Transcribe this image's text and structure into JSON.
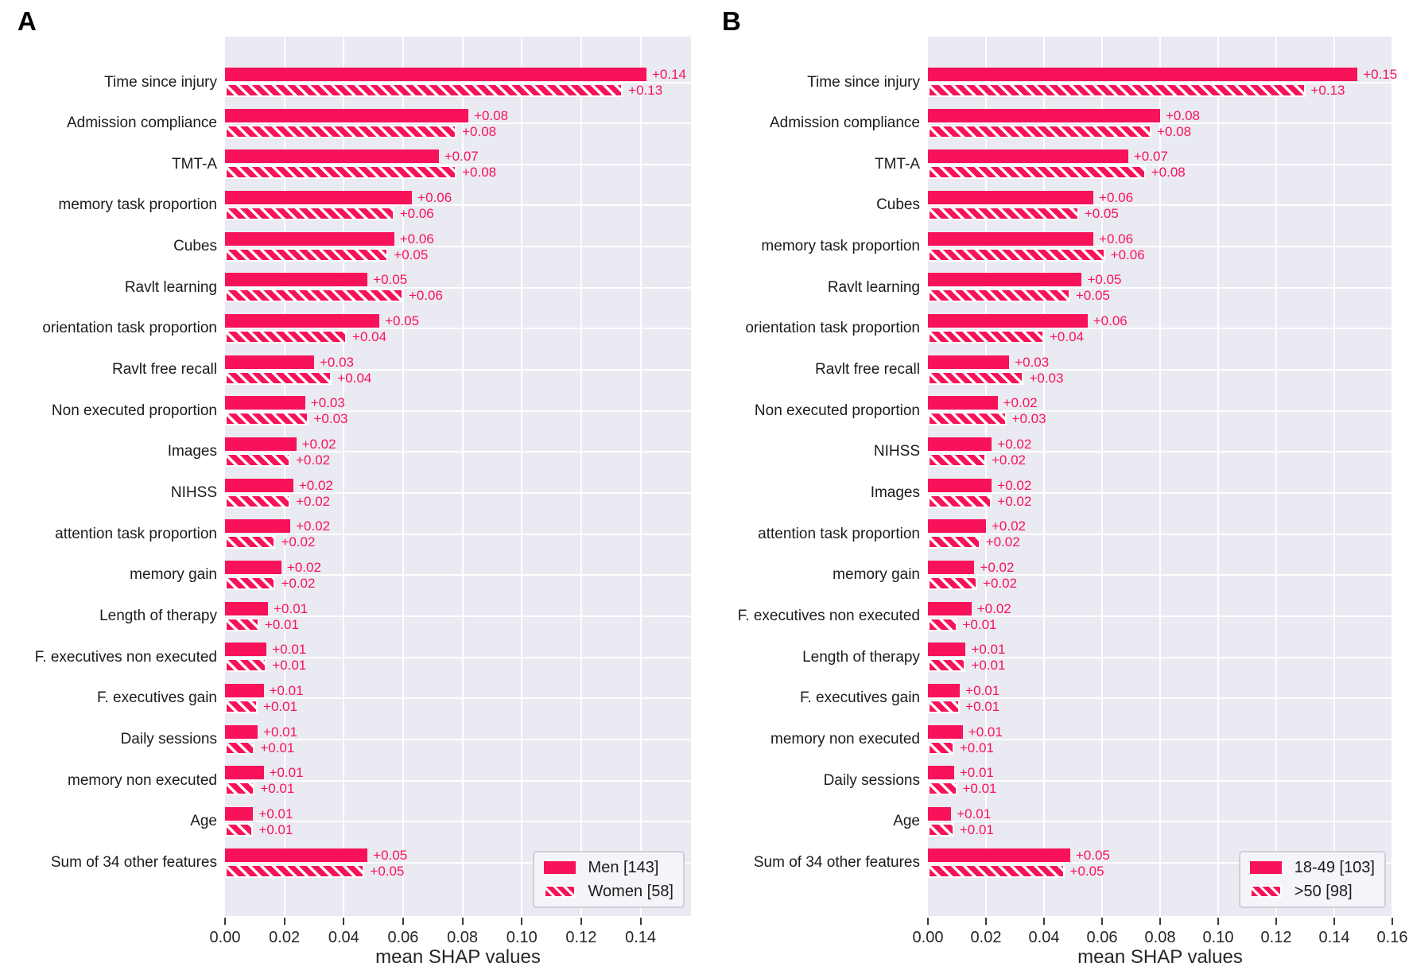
{
  "colors": {
    "bar": "#f8125a",
    "plot_bg": "#eaeaf2",
    "grid": "#ffffff",
    "text": "#262626",
    "legend_bg": "#f4f4f9",
    "legend_border": "#cfcfd8"
  },
  "chart_data": [
    {
      "type": "bar",
      "orientation": "horizontal",
      "panel": "A",
      "title": "",
      "xlabel": "mean SHAP values",
      "ylabel": "",
      "xlim": [
        0,
        0.157
      ],
      "xticks": [
        0,
        0.02,
        0.04,
        0.06,
        0.08,
        0.1,
        0.12,
        0.14
      ],
      "xtick_labels": [
        "0.00",
        "0.02",
        "0.04",
        "0.06",
        "0.08",
        "0.10",
        "0.12",
        "0.14"
      ],
      "grid": true,
      "legend_position": "lower right",
      "categories": [
        "Time since injury",
        "Admission compliance",
        "TMT-A",
        "memory task proportion",
        "Cubes",
        "Ravlt learning",
        "orientation task proportion",
        "Ravlt free recall",
        "Non executed proportion",
        "Images",
        "NIHSS",
        "attention task proportion",
        "memory gain",
        "Length of therapy",
        "F. executives non executed",
        "F. executives gain",
        "Daily sessions",
        "memory non executed",
        "Age",
        "Sum of 34 other features"
      ],
      "series": [
        {
          "name": "Men [143]",
          "style": "solid",
          "values": [
            0.142,
            0.082,
            0.072,
            0.063,
            0.057,
            0.048,
            0.052,
            0.03,
            0.027,
            0.024,
            0.023,
            0.022,
            0.019,
            0.0145,
            0.014,
            0.013,
            0.011,
            0.013,
            0.0095,
            0.048
          ],
          "value_labels": [
            "+0.14",
            "+0.08",
            "+0.07",
            "+0.06",
            "+0.06",
            "+0.05",
            "+0.05",
            "+0.03",
            "+0.03",
            "+0.02",
            "+0.02",
            "+0.02",
            "+0.02",
            "+0.01",
            "+0.01",
            "+0.01",
            "+0.01",
            "+0.01",
            "+0.01",
            "+0.05"
          ]
        },
        {
          "name": "Women [58]",
          "style": "hatched",
          "values": [
            0.134,
            0.078,
            0.078,
            0.057,
            0.055,
            0.06,
            0.041,
            0.036,
            0.028,
            0.022,
            0.022,
            0.017,
            0.017,
            0.0115,
            0.014,
            0.011,
            0.01,
            0.01,
            0.0095,
            0.047
          ],
          "value_labels": [
            "+0.13",
            "+0.08",
            "+0.08",
            "+0.06",
            "+0.05",
            "+0.06",
            "+0.04",
            "+0.04",
            "+0.03",
            "+0.02",
            "+0.02",
            "+0.02",
            "+0.02",
            "+0.01",
            "+0.01",
            "+0.01",
            "+0.01",
            "+0.01",
            "+0.01",
            "+0.05"
          ]
        }
      ]
    },
    {
      "type": "bar",
      "orientation": "horizontal",
      "panel": "B",
      "title": "",
      "xlabel": "mean SHAP values",
      "ylabel": "",
      "xlim": [
        0,
        0.16
      ],
      "xticks": [
        0,
        0.02,
        0.04,
        0.06,
        0.08,
        0.1,
        0.12,
        0.14,
        0.16
      ],
      "xtick_labels": [
        "0.00",
        "0.02",
        "0.04",
        "0.06",
        "0.08",
        "0.10",
        "0.12",
        "0.14",
        "0.16"
      ],
      "grid": true,
      "legend_position": "lower right",
      "categories": [
        "Time since injury",
        "Admission compliance",
        "TMT-A",
        "Cubes",
        "memory task proportion",
        "Ravlt learning",
        "orientation task proportion",
        "Ravlt free recall",
        "Non executed proportion",
        "NIHSS",
        "Images",
        "attention task proportion",
        "memory gain",
        "F. executives non executed",
        "Length of therapy",
        "F. executives gain",
        "memory non executed",
        "Daily sessions",
        "Age",
        "Sum of 34 other features"
      ],
      "series": [
        {
          "name": "18-49 [103]",
          "style": "solid",
          "values": [
            0.148,
            0.08,
            0.069,
            0.057,
            0.057,
            0.053,
            0.055,
            0.028,
            0.024,
            0.022,
            0.022,
            0.02,
            0.016,
            0.015,
            0.013,
            0.011,
            0.012,
            0.009,
            0.008,
            0.049
          ],
          "value_labels": [
            "+0.15",
            "+0.08",
            "+0.07",
            "+0.06",
            "+0.06",
            "+0.05",
            "+0.06",
            "+0.03",
            "+0.02",
            "+0.02",
            "+0.02",
            "+0.02",
            "+0.02",
            "+0.02",
            "+0.01",
            "+0.01",
            "+0.01",
            "+0.01",
            "+0.01",
            "+0.05"
          ]
        },
        {
          "name": ">50 [98]",
          "style": "hatched",
          "values": [
            0.13,
            0.077,
            0.075,
            0.052,
            0.061,
            0.049,
            0.04,
            0.033,
            0.027,
            0.02,
            0.022,
            0.018,
            0.017,
            0.01,
            0.013,
            0.011,
            0.009,
            0.01,
            0.009,
            0.047
          ],
          "value_labels": [
            "+0.13",
            "+0.08",
            "+0.08",
            "+0.05",
            "+0.06",
            "+0.05",
            "+0.04",
            "+0.03",
            "+0.03",
            "+0.02",
            "+0.02",
            "+0.02",
            "+0.02",
            "+0.01",
            "+0.01",
            "+0.01",
            "+0.01",
            "+0.01",
            "+0.01",
            "+0.05"
          ]
        }
      ]
    }
  ]
}
